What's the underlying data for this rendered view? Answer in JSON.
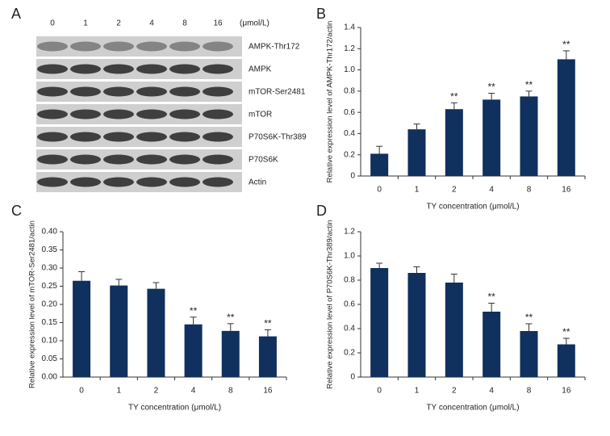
{
  "blot": {
    "panel_label": "A",
    "lanes": [
      "0",
      "1",
      "2",
      "4",
      "8",
      "16"
    ],
    "unit": "(μmol/L)",
    "rows": [
      "AMPK-Thr172",
      "AMPK",
      "mTOR-Ser2481",
      "mTOR",
      "P70S6K-Thr389",
      "P70S6K",
      "Actin"
    ]
  },
  "chart_data": [
    {
      "type": "bar",
      "panel_label": "B",
      "categories": [
        "0",
        "1",
        "2",
        "4",
        "8",
        "16"
      ],
      "values": [
        0.21,
        0.44,
        0.63,
        0.72,
        0.75,
        1.1
      ],
      "errors": [
        0.07,
        0.05,
        0.06,
        0.06,
        0.05,
        0.08
      ],
      "significance": [
        null,
        null,
        "**",
        "**",
        "**",
        "**"
      ],
      "color": "#10305e",
      "ylim": [
        0,
        1.4
      ],
      "yticks": [
        0,
        0.2,
        0.4,
        0.6,
        0.8,
        {
          "value": 1,
          "label": "1.0"
        },
        1.2,
        1.4
      ],
      "xlabel": "TY concentration (μmol/L)",
      "ylabel": "Relative expression level of AMPK-Thr172/actin"
    },
    {
      "type": "bar",
      "panel_label": "C",
      "categories": [
        "0",
        "1",
        "2",
        "4",
        "8",
        "16"
      ],
      "values": [
        0.265,
        0.252,
        0.243,
        0.145,
        0.127,
        0.112
      ],
      "errors": [
        0.025,
        0.017,
        0.017,
        0.02,
        0.02,
        0.018
      ],
      "significance": [
        null,
        null,
        null,
        "**",
        "**",
        "**"
      ],
      "color": "#10305e",
      "ylim": [
        0,
        0.4
      ],
      "yticks": [
        {
          "value": 0,
          "label": "0.00"
        },
        {
          "value": 0.05,
          "label": "0.05"
        },
        {
          "value": 0.1,
          "label": "0.10"
        },
        {
          "value": 0.15,
          "label": "0.15"
        },
        {
          "value": 0.2,
          "label": "0.20"
        },
        {
          "value": 0.25,
          "label": "0.25"
        },
        {
          "value": 0.3,
          "label": "0.30"
        },
        {
          "value": 0.35,
          "label": "0.35"
        },
        {
          "value": 0.4,
          "label": "0.40"
        }
      ],
      "xlabel": "TY concentration (μmol/L)",
      "ylabel": "Relative expression level of mTOR-Ser2481/actin"
    },
    {
      "type": "bar",
      "panel_label": "D",
      "categories": [
        "0",
        "1",
        "2",
        "4",
        "8",
        "16"
      ],
      "values": [
        0.9,
        0.86,
        0.78,
        0.54,
        0.38,
        0.27
      ],
      "errors": [
        0.04,
        0.05,
        0.07,
        0.07,
        0.06,
        0.05
      ],
      "significance": [
        null,
        null,
        null,
        "**",
        "**",
        "**"
      ],
      "color": "#10305e",
      "ylim": [
        0,
        1.2
      ],
      "yticks": [
        0,
        0.2,
        0.4,
        0.6,
        0.8,
        {
          "value": 1,
          "label": "1.0"
        },
        1.2
      ],
      "xlabel": "TY concentration (μmol/L)",
      "ylabel": "Relative expression level of P70S6K-Thr389/actin"
    }
  ]
}
